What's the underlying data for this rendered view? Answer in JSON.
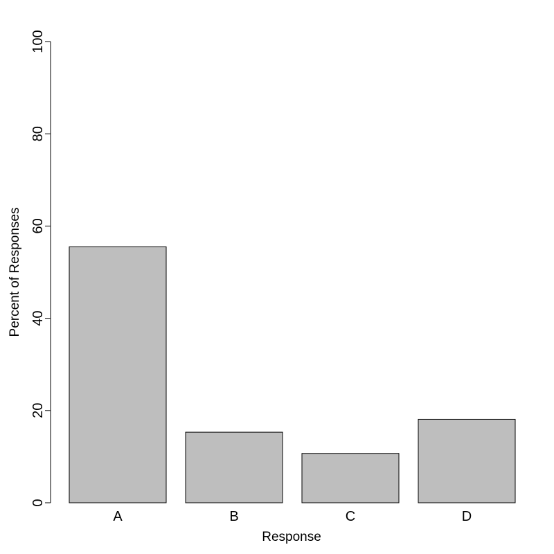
{
  "chart_data": {
    "type": "bar",
    "title": "",
    "xlabel": "Response",
    "ylabel": "Percent of Responses",
    "categories": [
      "A",
      "B",
      "C",
      "D"
    ],
    "values": [
      55.5,
      15.3,
      10.7,
      18.1
    ],
    "ylim": [
      0,
      100
    ],
    "yticks": [
      0,
      20,
      40,
      60,
      80,
      100
    ],
    "grid": false,
    "legend": "none",
    "colors": {
      "bar_fill": "#bebebe",
      "bar_stroke": "#000000"
    }
  }
}
